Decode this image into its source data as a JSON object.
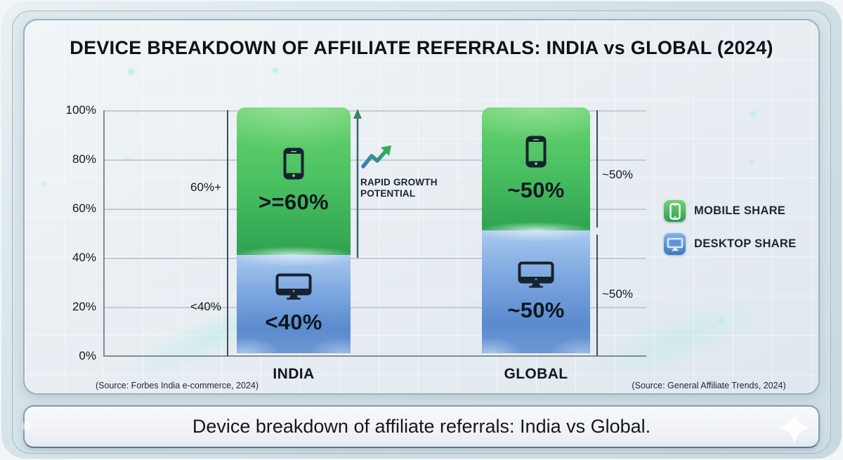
{
  "title": "DEVICE BREAKDOWN OF AFFILIATE REFERRALS: INDIA vs GLOBAL (2024)",
  "chart_data": {
    "type": "bar",
    "stacked": true,
    "categories": [
      "INDIA",
      "GLOBAL"
    ],
    "series": [
      {
        "name": "MOBILE SHARE",
        "color": "#44c15e",
        "values": [
          60,
          50
        ],
        "bar_labels": [
          ">=60%",
          "~50%"
        ]
      },
      {
        "name": "DESKTOP SHARE",
        "color": "#6d9ad8",
        "values": [
          40,
          50
        ],
        "bar_labels": [
          "<40%",
          "~50%"
        ]
      }
    ],
    "y_ticks": [
      "100%",
      "80%",
      "60%",
      "40%",
      "20%",
      "0%"
    ],
    "ylim": [
      0,
      100
    ],
    "grid": true,
    "legend_position": "right",
    "annotations": {
      "left_upper": "60%+",
      "left_lower": "<40%",
      "right_upper": "~50%",
      "right_lower": "~50%",
      "growth_line1": "RAPID GROWTH",
      "growth_line2": "POTENTIAL"
    },
    "source_left": "(Source: Forbes India e-commerce, 2024)",
    "source_right": "(Source: General Affiliate Trends, 2024)"
  },
  "caption": "Device breakdown of affiliate referrals: India vs Global."
}
